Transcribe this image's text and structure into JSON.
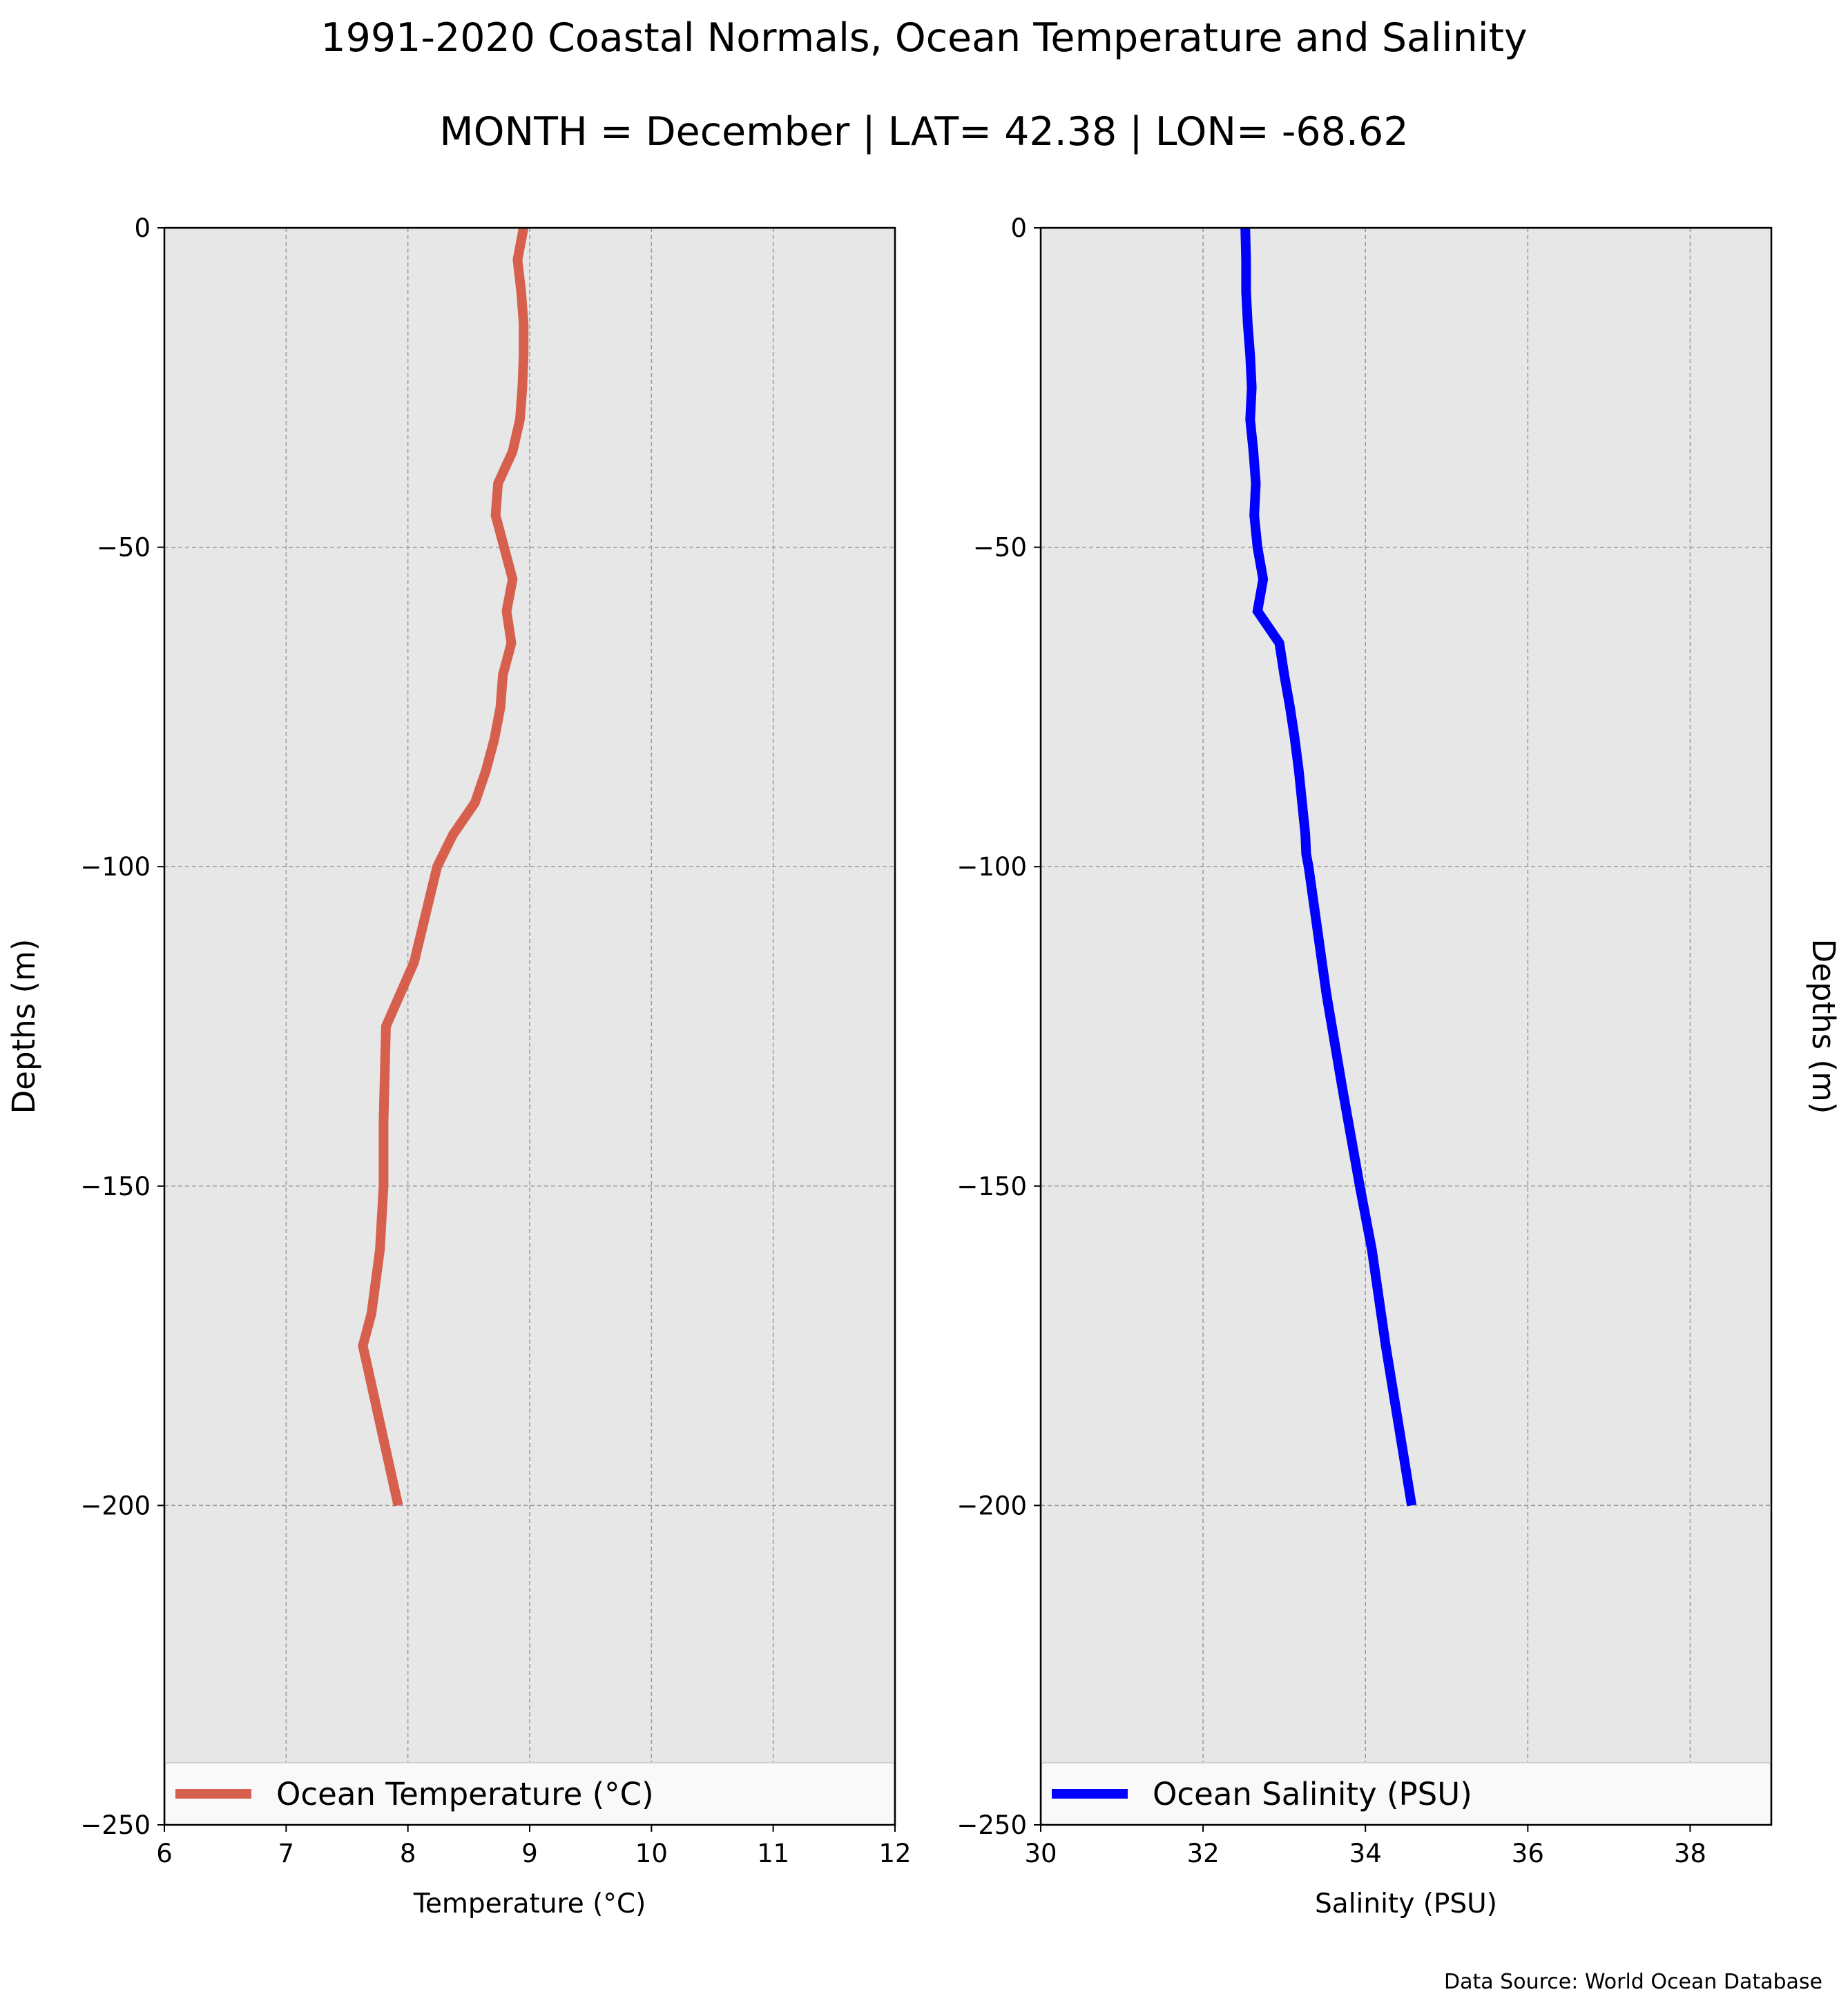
{
  "title": "1991-2020 Coastal Normals, Ocean Temperature and Salinity",
  "subtitle": "MONTH = December | LAT= 42.38 | LON= -68.62",
  "source": "Data Source: World Ocean Database",
  "colors": {
    "temperature": "#d6604d",
    "salinity": "#0000ff",
    "plot_bg": "#e7e7e7",
    "grid": "#9a9a9a"
  },
  "chart_data": [
    {
      "type": "line",
      "xlabel": "Temperature ($^\\circ$C)",
      "xlabel_display": "Temperature (°C)",
      "ylabel": "Depths (m)",
      "xlim": [
        6,
        12
      ],
      "ylim": [
        -250,
        0
      ],
      "xticks": [
        6,
        7,
        8,
        9,
        10,
        11,
        12
      ],
      "yticks": [
        0,
        -50,
        -100,
        -150,
        -200,
        -250
      ],
      "ytick_labels": [
        "0",
        "−50",
        "−100",
        "−150",
        "−200",
        "−250"
      ],
      "grid": true,
      "legend": "lower center",
      "series": [
        {
          "name": "Ocean Temperature (°C)",
          "color": "#d6604d",
          "x": [
            8.95,
            8.9,
            8.93,
            8.95,
            8.95,
            8.94,
            8.92,
            8.86,
            8.74,
            8.72,
            8.86,
            8.81,
            8.85,
            8.78,
            8.76,
            8.71,
            8.64,
            8.55,
            8.37,
            8.24,
            8.05,
            7.82,
            7.8,
            7.8,
            7.77,
            7.7,
            7.63,
            7.92
          ],
          "y": [
            0,
            -5,
            -10,
            -15,
            -20,
            -25,
            -30,
            -35,
            -40,
            -45,
            -55,
            -60,
            -65,
            -70,
            -75,
            -80,
            -85,
            -90,
            -95,
            -100,
            -115,
            -125,
            -140,
            -150,
            -160,
            -170,
            -175,
            -200
          ]
        }
      ]
    },
    {
      "type": "line",
      "xlabel": "Salinity (PSU)",
      "ylabel": "Depths (m)",
      "xlim": [
        30,
        39
      ],
      "ylim": [
        -250,
        0
      ],
      "xticks": [
        30,
        32,
        34,
        36,
        38
      ],
      "yticks": [
        0,
        -50,
        -100,
        -150,
        -200,
        -250
      ],
      "ytick_labels": [
        "0",
        "−50",
        "−100",
        "−150",
        "−200",
        "−250"
      ],
      "grid": true,
      "legend": "lower center",
      "series": [
        {
          "name": "Ocean Salinity (PSU)",
          "color": "#0000ff",
          "x": [
            32.52,
            32.53,
            32.53,
            32.55,
            32.58,
            32.6,
            32.58,
            32.62,
            32.65,
            32.63,
            32.67,
            32.74,
            32.67,
            32.94,
            33.0,
            33.07,
            33.13,
            33.18,
            33.22,
            33.26,
            33.27,
            33.3,
            33.52,
            33.72,
            33.93,
            34.08,
            34.25,
            34.57
          ],
          "y": [
            0,
            -5,
            -10,
            -15,
            -20,
            -25,
            -30,
            -35,
            -40,
            -45,
            -50,
            -55,
            -60,
            -65,
            -70,
            -75,
            -80,
            -85,
            -90,
            -95,
            -98,
            -100,
            -120,
            -135,
            -150,
            -160,
            -175,
            -200
          ]
        }
      ]
    }
  ]
}
